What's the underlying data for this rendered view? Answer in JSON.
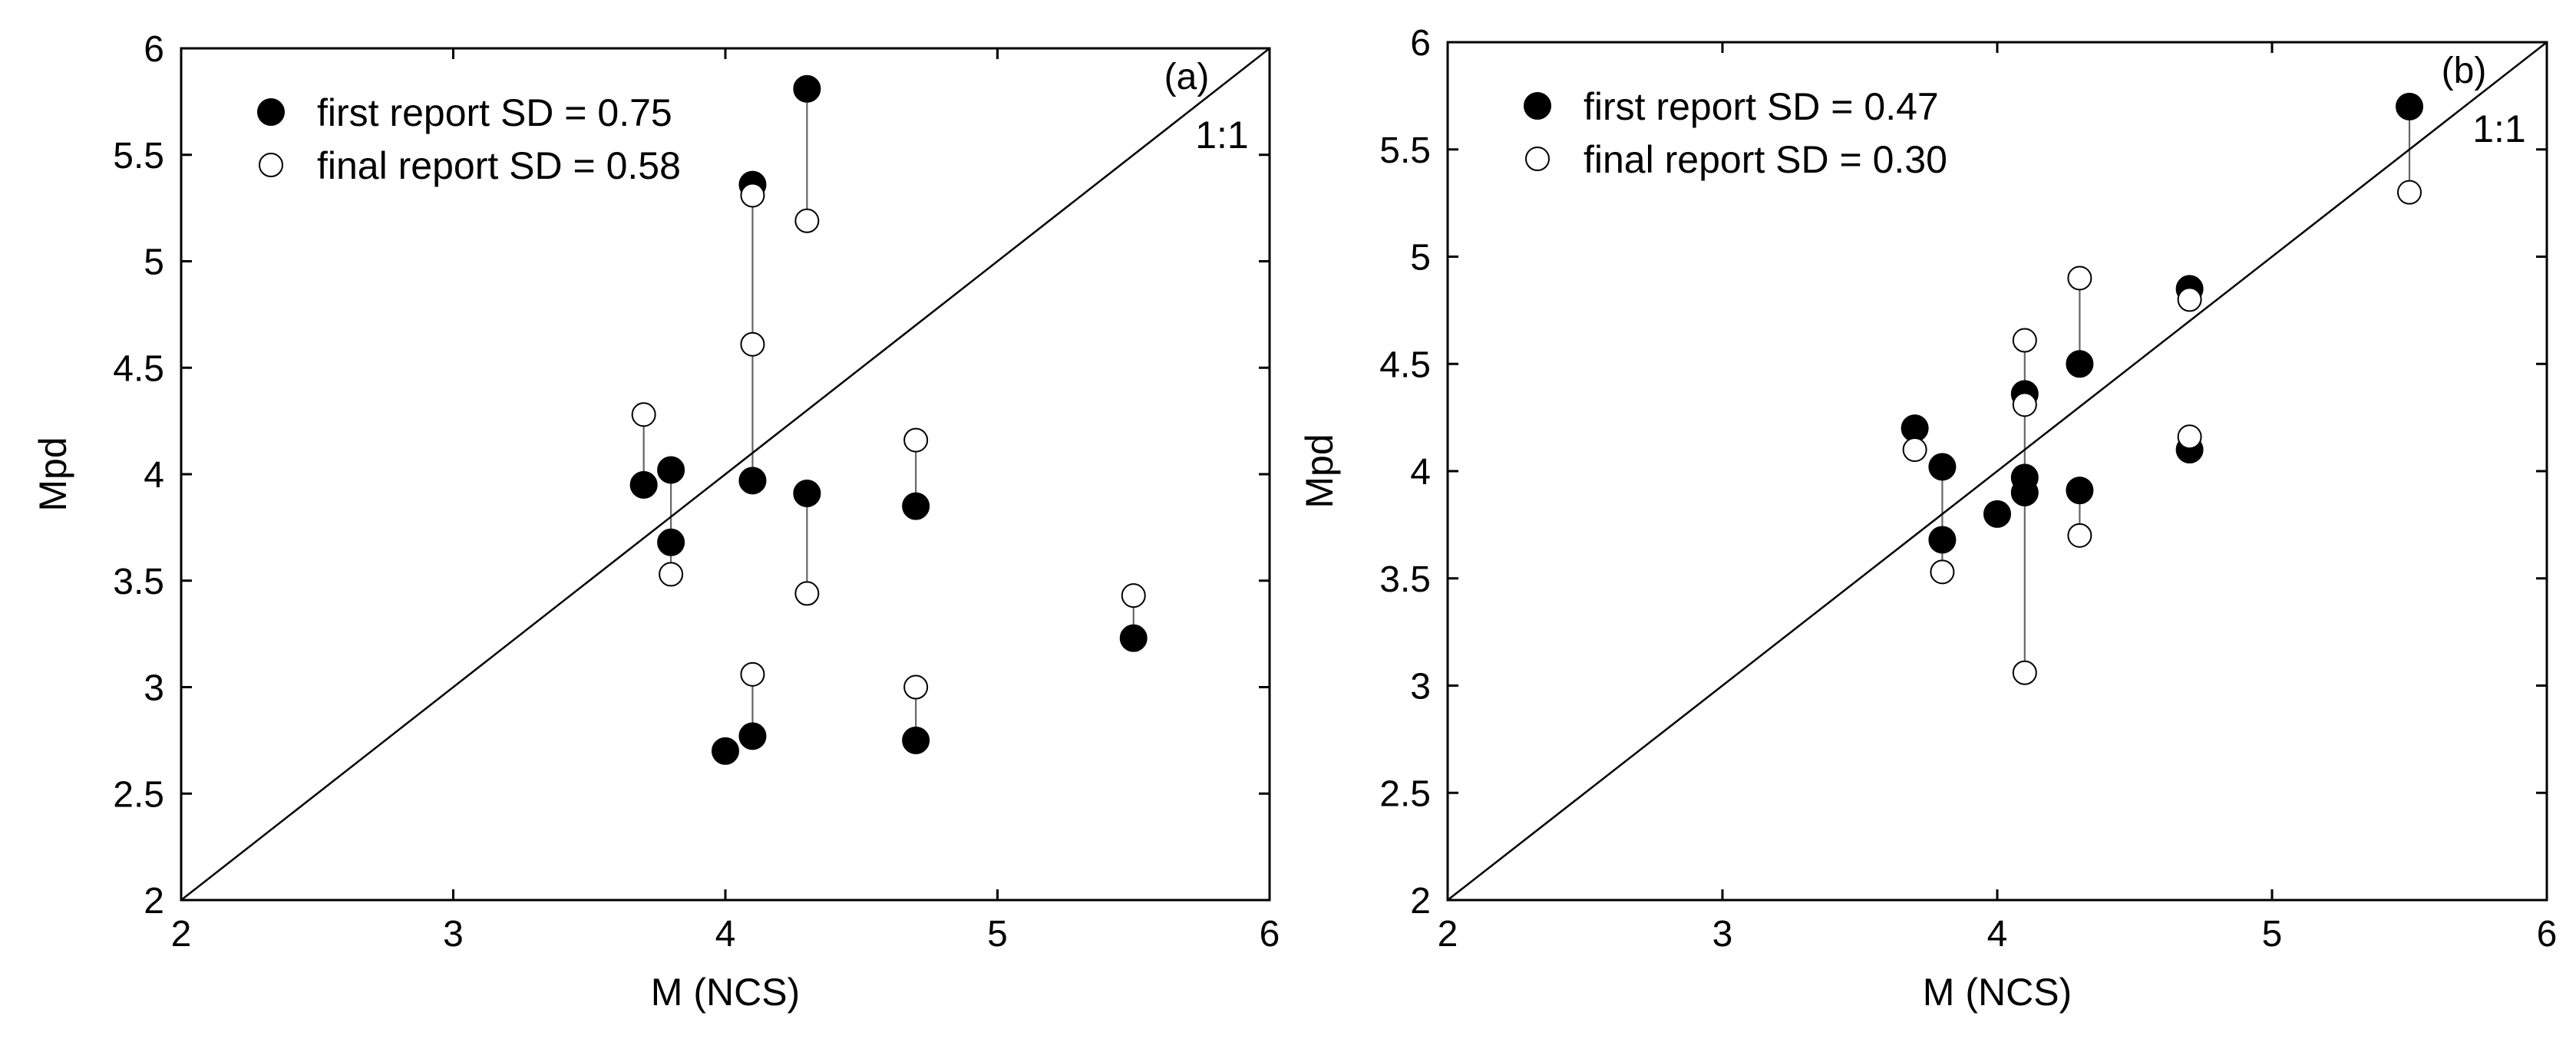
{
  "chart_data": [
    {
      "type": "scatter",
      "panel_label": "(a)",
      "xlabel": "M (NCS)",
      "ylabel": "Mpd",
      "xlim": [
        2,
        6
      ],
      "ylim": [
        2,
        6
      ],
      "xticks": [
        2,
        3,
        4,
        5,
        6
      ],
      "yticks": [
        2,
        2.5,
        3,
        3.5,
        4,
        4.5,
        5,
        5.5,
        6
      ],
      "grid": false,
      "legend_position": "top-left",
      "reference_line": {
        "label": "1:1",
        "from": [
          2,
          2
        ],
        "to": [
          6,
          6
        ]
      },
      "series": [
        {
          "name": "first report SD = 0.75",
          "marker": "filled-circle",
          "points": [
            [
              3.7,
              3.95
            ],
            [
              3.8,
              4.02
            ],
            [
              3.8,
              3.68
            ],
            [
              4.0,
              2.7
            ],
            [
              4.1,
              5.36
            ],
            [
              4.1,
              3.97
            ],
            [
              4.1,
              2.77
            ],
            [
              4.3,
              5.81
            ],
            [
              4.3,
              3.91
            ],
            [
              4.7,
              3.85
            ],
            [
              4.7,
              2.75
            ],
            [
              5.5,
              3.23
            ]
          ]
        },
        {
          "name": "final report SD = 0.58",
          "marker": "open-circle",
          "points": [
            [
              3.7,
              4.28
            ],
            [
              3.8,
              3.53
            ],
            [
              4.1,
              5.31
            ],
            [
              4.1,
              4.61
            ],
            [
              4.1,
              3.06
            ],
            [
              4.3,
              5.19
            ],
            [
              4.3,
              3.44
            ],
            [
              4.7,
              4.16
            ],
            [
              4.7,
              3.0
            ],
            [
              5.5,
              3.43
            ]
          ]
        }
      ],
      "connectors": [
        [
          [
            3.7,
            3.95
          ],
          [
            3.7,
            4.28
          ]
        ],
        [
          [
            3.8,
            4.02
          ],
          [
            3.8,
            3.53
          ]
        ],
        [
          [
            4.1,
            5.36
          ],
          [
            4.1,
            3.97
          ]
        ],
        [
          [
            4.1,
            2.77
          ],
          [
            4.1,
            3.06
          ]
        ],
        [
          [
            4.3,
            5.81
          ],
          [
            4.3,
            5.19
          ]
        ],
        [
          [
            4.3,
            3.91
          ],
          [
            4.3,
            3.44
          ]
        ],
        [
          [
            4.7,
            3.85
          ],
          [
            4.7,
            4.16
          ]
        ],
        [
          [
            4.7,
            2.75
          ],
          [
            4.7,
            3.0
          ]
        ],
        [
          [
            5.5,
            3.23
          ],
          [
            5.5,
            3.43
          ]
        ]
      ]
    },
    {
      "type": "scatter",
      "panel_label": "(b)",
      "xlabel": "M (NCS)",
      "ylabel": "Mpd",
      "xlim": [
        2,
        6
      ],
      "ylim": [
        2,
        6
      ],
      "xticks": [
        2,
        3,
        4,
        5,
        6
      ],
      "yticks": [
        2,
        2.5,
        3,
        3.5,
        4,
        4.5,
        5,
        5.5,
        6
      ],
      "grid": false,
      "legend_position": "top-left",
      "reference_line": {
        "label": "1:1",
        "from": [
          2,
          2
        ],
        "to": [
          6,
          6
        ]
      },
      "series": [
        {
          "name": "first report SD = 0.47",
          "marker": "filled-circle",
          "points": [
            [
              3.7,
              4.2
            ],
            [
              3.8,
              4.02
            ],
            [
              3.8,
              3.68
            ],
            [
              4.0,
              3.8
            ],
            [
              4.1,
              4.36
            ],
            [
              4.1,
              3.97
            ],
            [
              4.1,
              3.9
            ],
            [
              4.3,
              4.5
            ],
            [
              4.3,
              3.91
            ],
            [
              4.7,
              4.85
            ],
            [
              4.7,
              4.1
            ],
            [
              5.5,
              5.7
            ]
          ]
        },
        {
          "name": "final report SD = 0.30",
          "marker": "open-circle",
          "points": [
            [
              3.7,
              4.1
            ],
            [
              3.8,
              3.53
            ],
            [
              4.1,
              4.61
            ],
            [
              4.1,
              4.31
            ],
            [
              4.1,
              3.06
            ],
            [
              4.3,
              4.9
            ],
            [
              4.3,
              3.7
            ],
            [
              4.7,
              4.8
            ],
            [
              4.7,
              4.16
            ],
            [
              5.5,
              5.3
            ]
          ]
        }
      ],
      "connectors": [
        [
          [
            3.7,
            4.2
          ],
          [
            3.7,
            4.1
          ]
        ],
        [
          [
            3.8,
            4.02
          ],
          [
            3.8,
            3.53
          ]
        ],
        [
          [
            4.1,
            4.61
          ],
          [
            4.1,
            3.06
          ]
        ],
        [
          [
            4.3,
            4.5
          ],
          [
            4.3,
            4.9
          ]
        ],
        [
          [
            4.3,
            3.91
          ],
          [
            4.3,
            3.7
          ]
        ],
        [
          [
            4.7,
            4.85
          ],
          [
            4.7,
            4.8
          ]
        ],
        [
          [
            4.7,
            4.1
          ],
          [
            4.7,
            4.16
          ]
        ],
        [
          [
            5.5,
            5.7
          ],
          [
            5.5,
            5.3
          ]
        ]
      ]
    }
  ]
}
